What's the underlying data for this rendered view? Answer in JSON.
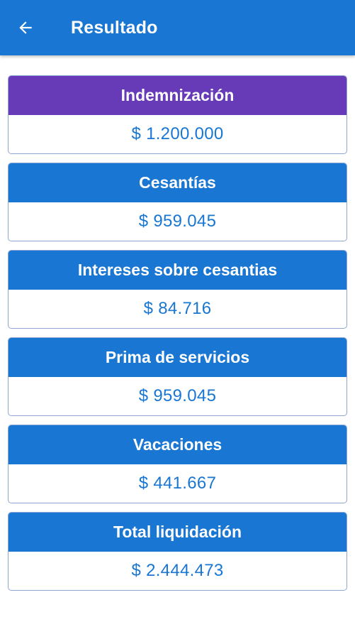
{
  "app_bar": {
    "title": "Resultado",
    "back_icon": "arrow-left-icon"
  },
  "colors": {
    "primary": "#1976d2",
    "accent_purple": "#673ab7",
    "card_border": "#8ea7d2"
  },
  "results": [
    {
      "label": "Indemnización",
      "value": "$ 1.200.000"
    },
    {
      "label": "Cesantías",
      "value": "$ 959.045"
    },
    {
      "label": "Intereses sobre cesantias",
      "value": "$ 84.716"
    },
    {
      "label": "Prima de servicios",
      "value": "$ 959.045"
    },
    {
      "label": "Vacaciones",
      "value": "$ 441.667"
    },
    {
      "label": "Total liquidación",
      "value": "$ 2.444.473"
    }
  ]
}
